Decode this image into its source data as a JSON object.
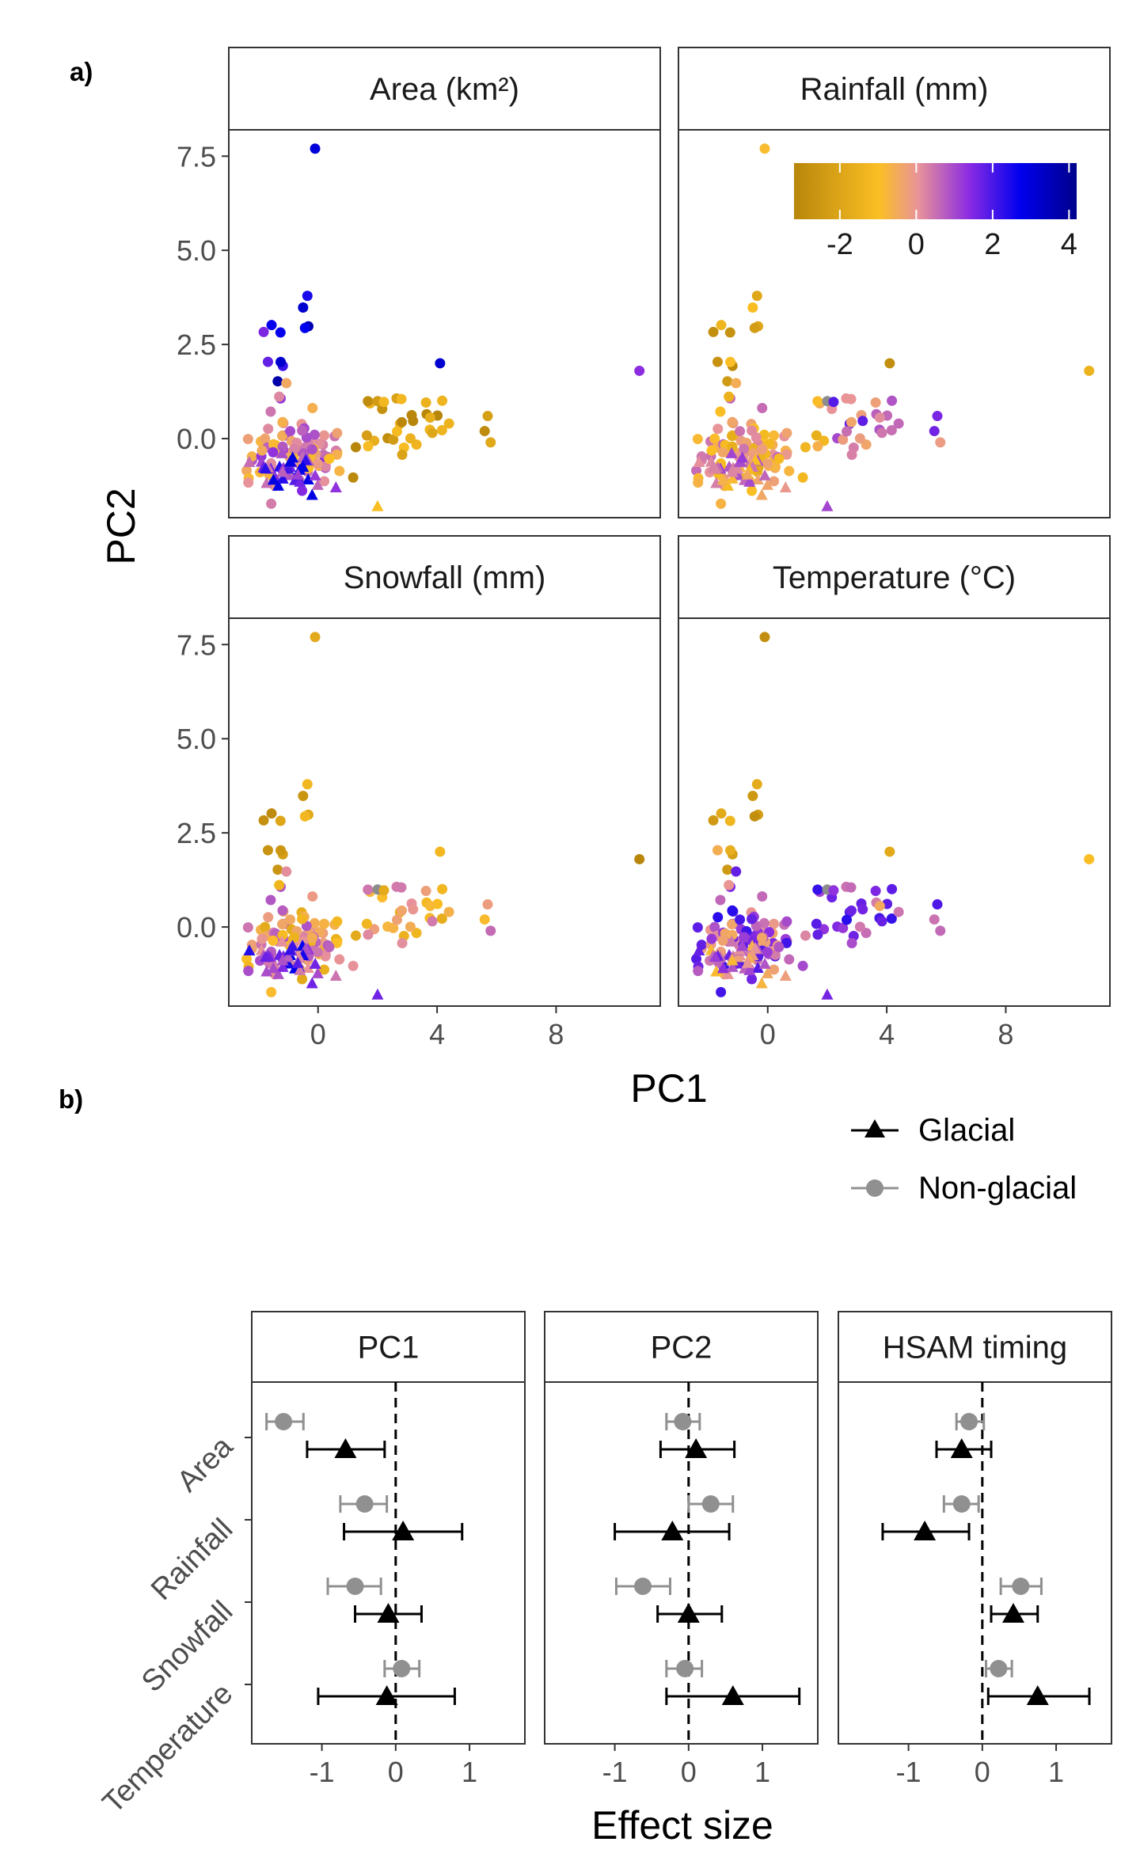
{
  "panel_labels": {
    "a": "a)",
    "b": "b)"
  },
  "colors": {
    "scale": [
      "#b8860b",
      "#fbbf24",
      "#e8939a",
      "#8a2be2",
      "#0000ee",
      "#00008b"
    ],
    "glacial": "#000000",
    "nonglacial": "#909090",
    "missing": "#8c8c8c",
    "strip_fill": "#ffffff",
    "border": "#333333"
  },
  "colorbar": {
    "ticks": [
      "-2",
      "0",
      "2",
      "4"
    ],
    "range": [
      -3.2,
      4.2
    ]
  },
  "legend": {
    "glacial": "Glacial",
    "nonglacial": "Non-glacial"
  },
  "chart_data": [
    {
      "type": "scatter",
      "facets": [
        "Area (km²)",
        "Rainfall (mm)",
        "Snowfall (mm)",
        "Temperature (°C)"
      ],
      "xlabel": "PC1",
      "ylabel": "PC2",
      "xlim": [
        -3,
        11.5
      ],
      "ylim": [
        -2.1,
        8.2
      ],
      "xticks": [
        "0",
        "4",
        "8"
      ],
      "yticks": [
        "0.0",
        "2.5",
        "5.0",
        "7.5"
      ],
      "xtick_values": [
        0,
        4,
        8
      ],
      "ytick_values": [
        0,
        2.5,
        5,
        7.5
      ],
      "color_legend": "top-right"
    },
    {
      "type": "scatter",
      "facets": [
        "PC1",
        "PC2",
        "HSAM timing"
      ],
      "predictors": [
        "Area",
        "Rainfall",
        "Snowfall",
        "Temperature"
      ],
      "xlabel": "Effect size",
      "xlim": [
        -1.95,
        1.75
      ],
      "xticks": [
        "-1",
        "0",
        "1"
      ],
      "xtick_values": [
        -1,
        0,
        1
      ],
      "legend_position": "top-right",
      "series": [
        {
          "name": "Glacial",
          "values": [
            [
              [
                -0.68,
                -1.2,
                -0.15
              ],
              [
                0.1,
                -0.7,
                0.9
              ],
              [
                -0.1,
                -0.55,
                0.35
              ],
              [
                -0.12,
                -1.05,
                0.8
              ]
            ],
            [
              [
                0.1,
                -0.38,
                0.62
              ],
              [
                -0.22,
                -1.0,
                0.55
              ],
              [
                0.0,
                -0.42,
                0.45
              ],
              [
                0.6,
                -0.3,
                1.5
              ]
            ],
            [
              [
                -0.28,
                -0.62,
                0.12
              ],
              [
                -0.78,
                -1.35,
                -0.18
              ],
              [
                0.42,
                0.12,
                0.75
              ],
              [
                0.75,
                0.08,
                1.45
              ]
            ]
          ]
        },
        {
          "name": "Non-glacial",
          "values": [
            [
              [
                -1.52,
                -1.75,
                -1.25
              ],
              [
                -0.42,
                -0.75,
                -0.12
              ],
              [
                -0.55,
                -0.92,
                -0.2
              ],
              [
                0.08,
                -0.15,
                0.32
              ]
            ],
            [
              [
                -0.08,
                -0.3,
                0.15
              ],
              [
                0.3,
                0.0,
                0.6
              ],
              [
                -0.62,
                -0.98,
                -0.25
              ],
              [
                -0.05,
                -0.3,
                0.18
              ]
            ],
            [
              [
                -0.18,
                -0.35,
                0.02
              ],
              [
                -0.28,
                -0.52,
                -0.05
              ],
              [
                0.52,
                0.25,
                0.8
              ],
              [
                0.22,
                0.05,
                0.4
              ]
            ]
          ]
        }
      ]
    }
  ]
}
